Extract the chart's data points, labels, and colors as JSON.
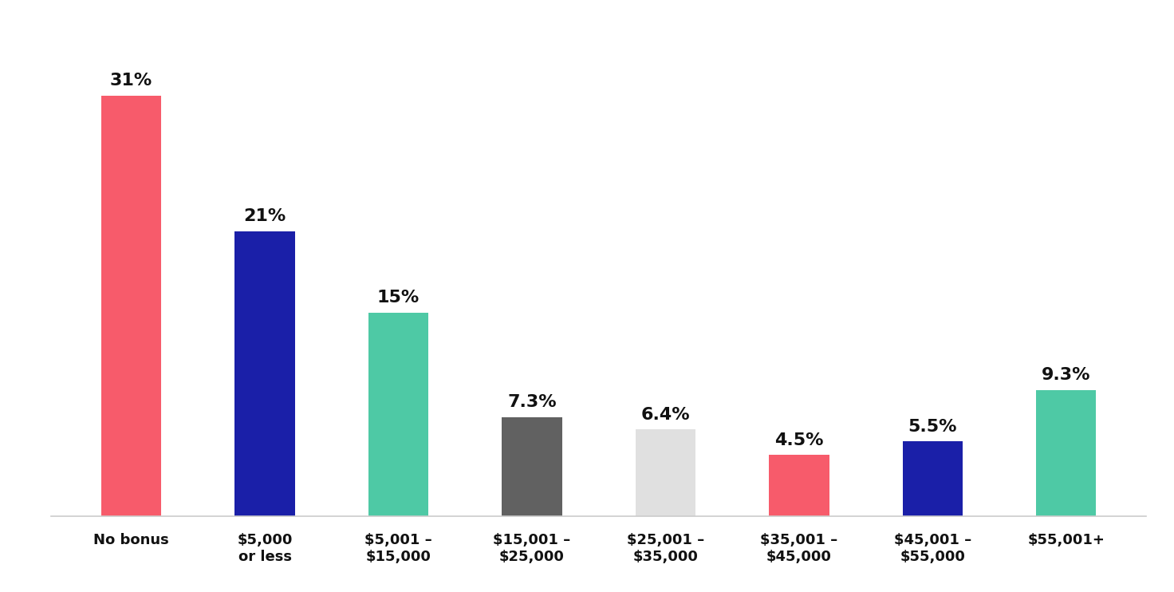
{
  "categories": [
    "No bonus",
    "$5,000\nor less",
    "$5,001 –\n$15,000",
    "$15,001 –\n$25,000",
    "$25,001 –\n$35,000",
    "$35,001 –\n$45,000",
    "$45,001 –\n$55,000",
    "$55,001+"
  ],
  "values": [
    31,
    21,
    15,
    7.3,
    6.4,
    4.5,
    5.5,
    9.3
  ],
  "labels": [
    "31%",
    "21%",
    "15%",
    "7.3%",
    "6.4%",
    "4.5%",
    "5.5%",
    "9.3%"
  ],
  "bar_colors": [
    "#F75B6B",
    "#1A1FA8",
    "#4EC9A5",
    "#616161",
    "#E0E0E0",
    "#F75B6B",
    "#1A1FA8",
    "#4EC9A5"
  ],
  "background_color": "#FFFFFF",
  "ylim": [
    0,
    36
  ],
  "bar_width": 0.45,
  "label_fontsize": 16,
  "tick_fontsize": 13,
  "label_fontweight": "black",
  "tick_fontweight": "black"
}
